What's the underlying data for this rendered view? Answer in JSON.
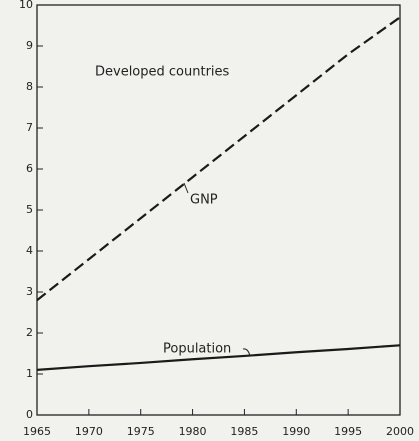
{
  "chart_data": {
    "type": "line",
    "annotations": [
      "Developed countries",
      "GNP",
      "Population"
    ],
    "x": [
      1965,
      1970,
      1975,
      1980,
      1985,
      1990,
      1995,
      2000
    ],
    "series": [
      {
        "name": "GNP",
        "color": "#1a1a1a",
        "line_style": "dashed",
        "values": [
          2.8,
          3.8,
          4.8,
          5.8,
          6.8,
          7.8,
          8.8,
          9.7
        ]
      },
      {
        "name": "Population",
        "color": "#1a1a1a",
        "line_style": "solid",
        "values": [
          1.1,
          1.19,
          1.27,
          1.36,
          1.44,
          1.53,
          1.61,
          1.7
        ]
      }
    ],
    "xlim": [
      1965,
      2000
    ],
    "xticks": [
      1965,
      1970,
      1975,
      1980,
      1985,
      1990,
      1995,
      2000
    ],
    "ylim": [
      0,
      10
    ],
    "yticks": [
      0,
      1,
      2,
      3,
      4,
      5,
      6,
      7,
      8,
      9,
      10
    ],
    "grid": false
  }
}
